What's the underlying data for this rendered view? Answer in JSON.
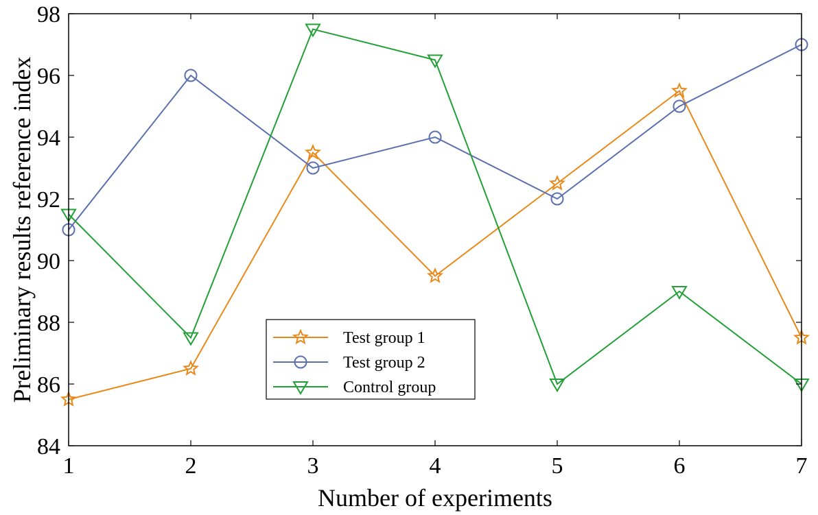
{
  "chart_data": {
    "type": "line",
    "title": "",
    "xlabel": "Number of experiments",
    "ylabel": "Preliminary results reference index",
    "x": [
      1,
      2,
      3,
      4,
      5,
      6,
      7
    ],
    "xticks": [
      "1",
      "2",
      "3",
      "4",
      "5",
      "6",
      "7"
    ],
    "yticks": [
      "84",
      "86",
      "88",
      "90",
      "92",
      "94",
      "96",
      "98"
    ],
    "xlim": [
      1,
      7
    ],
    "ylim": [
      84,
      98
    ],
    "grid": false,
    "legend_position": "center-left",
    "series": [
      {
        "name": "Test group 1",
        "color": "#E8891A",
        "marker": "star",
        "values": [
          85.5,
          86.5,
          93.5,
          89.5,
          92.5,
          95.5,
          87.5
        ]
      },
      {
        "name": "Test group 2",
        "color": "#5B6FB0",
        "marker": "circle",
        "values": [
          91,
          96,
          93,
          94,
          92,
          95,
          97
        ]
      },
      {
        "name": "Control group",
        "color": "#21A035",
        "marker": "triangle-down",
        "values": [
          91.5,
          87.5,
          97.5,
          96.5,
          86,
          89,
          86
        ]
      }
    ]
  }
}
